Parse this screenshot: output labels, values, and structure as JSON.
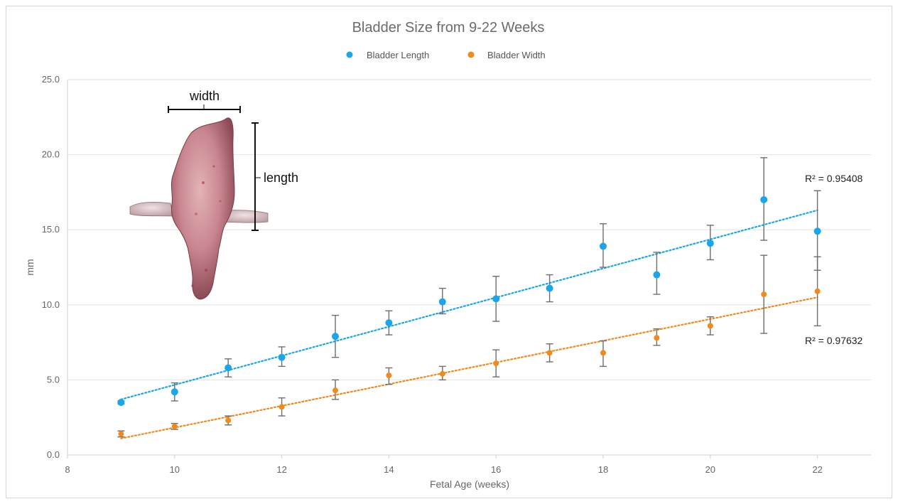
{
  "chart_data": {
    "type": "scatter",
    "title": "Bladder Size from 9-22 Weeks",
    "xlabel": "Fetal Age (weeks)",
    "ylabel": "mm",
    "xlim": [
      8,
      23
    ],
    "ylim": [
      0,
      25
    ],
    "x_ticks": [
      "8",
      "10",
      "12",
      "14",
      "16",
      "18",
      "20",
      "22"
    ],
    "y_ticks": [
      "0.0",
      "5.0",
      "10.0",
      "15.0",
      "20.0",
      "25.0"
    ],
    "grid": "horizontal",
    "legend_position": "top-center",
    "series": [
      {
        "name": "Bladder Length",
        "color": "#1aa7ea",
        "x": [
          9,
          10,
          11,
          12,
          13,
          14,
          15,
          16,
          17,
          18,
          19,
          20,
          21,
          22
        ],
        "y": [
          3.5,
          4.2,
          5.8,
          6.5,
          7.9,
          8.8,
          10.2,
          10.4,
          11.1,
          13.9,
          12.0,
          14.1,
          17.0,
          14.9
        ],
        "error_low": [
          3.4,
          3.6,
          5.2,
          5.9,
          6.5,
          8.0,
          9.4,
          8.9,
          10.2,
          12.5,
          10.7,
          13.0,
          14.3,
          12.3
        ],
        "error_high": [
          3.6,
          4.8,
          6.4,
          7.2,
          9.3,
          9.6,
          11.1,
          11.9,
          12.0,
          15.4,
          13.5,
          15.3,
          19.8,
          17.6
        ],
        "trend": {
          "x": [
            9,
            22
          ],
          "y": [
            3.7,
            16.3
          ]
        },
        "r2": "R² = 0.95408"
      },
      {
        "name": "Bladder Width",
        "color": "#f08a1c",
        "x": [
          9,
          10,
          11,
          12,
          13,
          14,
          15,
          16,
          17,
          18,
          19,
          20,
          21,
          22
        ],
        "y": [
          1.4,
          1.9,
          2.3,
          3.2,
          4.3,
          5.3,
          5.4,
          6.1,
          6.8,
          6.8,
          7.8,
          8.6,
          10.7,
          10.9
        ],
        "error_low": [
          1.2,
          1.7,
          2.0,
          2.6,
          3.7,
          4.7,
          5.0,
          5.2,
          6.2,
          5.9,
          7.3,
          8.0,
          8.1,
          8.6
        ],
        "error_high": [
          1.6,
          2.1,
          2.6,
          3.8,
          5.0,
          5.8,
          5.9,
          7.0,
          7.4,
          7.6,
          8.4,
          9.2,
          13.3,
          13.2
        ],
        "trend": {
          "x": [
            9,
            22
          ],
          "y": [
            1.1,
            10.5
          ]
        },
        "r2": "R² = 0.97632"
      }
    ],
    "inset_labels": {
      "width": "width",
      "length": "length"
    }
  }
}
